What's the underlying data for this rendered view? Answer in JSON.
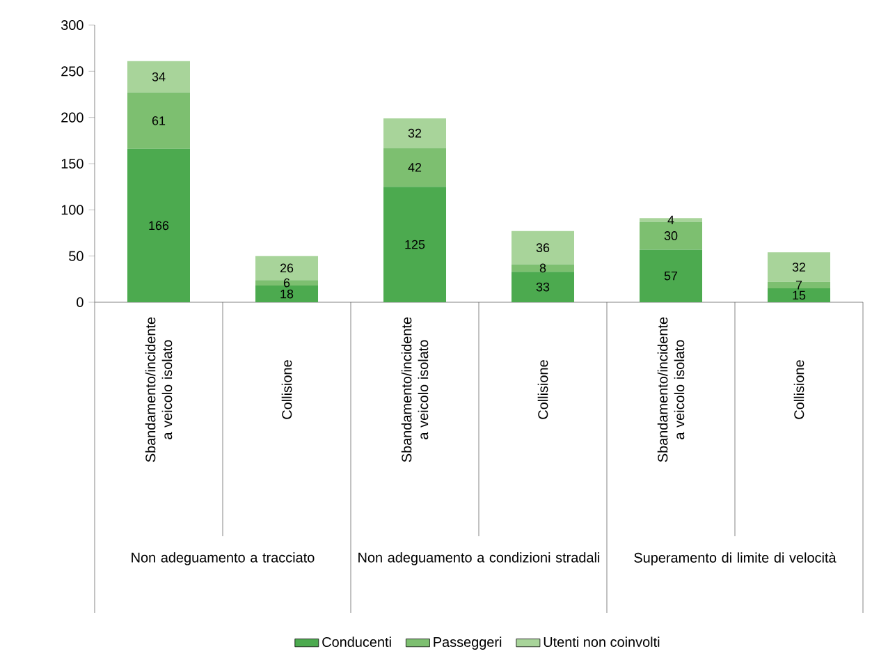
{
  "chart_data": {
    "type": "bar",
    "stacked": true,
    "data_labels": true,
    "legend": "bottom",
    "categories": [
      "Sbandamento/incidente a veicolo isolato",
      "Collisione",
      "Sbandamento/incidente a veicolo isolato",
      "Collisione",
      "Sbandamento/incidente a veicolo isolato",
      "Collisione"
    ],
    "series": [
      {
        "name": "Conducenti",
        "color": "#4caa4f",
        "values": [
          166,
          18,
          125,
          33,
          57,
          15
        ]
      },
      {
        "name": "Passeggeri",
        "color": "#7dbf70",
        "values": [
          61,
          6,
          42,
          8,
          30,
          7
        ]
      },
      {
        "name": "Utenti non coinvolti",
        "color": "#a8d49a",
        "values": [
          34,
          26,
          32,
          36,
          4,
          32
        ]
      }
    ],
    "ylim": [
      0,
      300
    ],
    "yticks": [
      0,
      50,
      100,
      150,
      200,
      250,
      300
    ],
    "annotations": [
      "Non adeguamento a tracciato",
      "Non adeguamento a condizioni stradali",
      "Superamento di limite di velocità"
    ]
  }
}
